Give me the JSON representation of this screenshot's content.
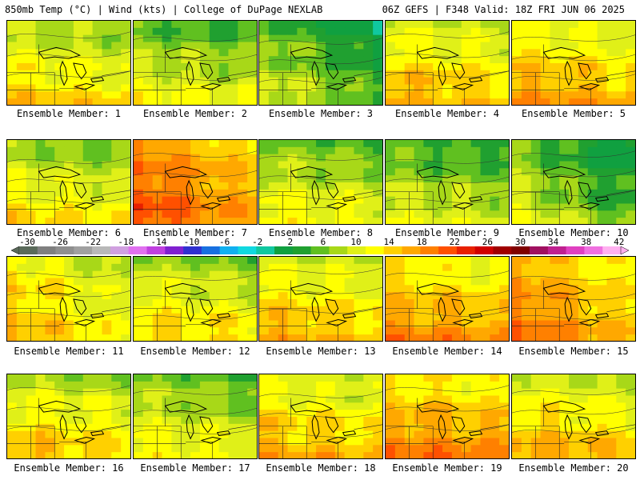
{
  "header": {
    "left_title": "850mb Temp (°C) | Wind (kts) | College of DuPage NEXLAB",
    "right_title": "06Z GEFS | F348 Valid: 18Z FRI JUN 06 2025"
  },
  "panels": [
    {
      "caption": "Ensemble Member: 1",
      "base_temp": 12,
      "gradient": "north-cool"
    },
    {
      "caption": "Ensemble Member: 2",
      "base_temp": 9,
      "gradient": "north-cool"
    },
    {
      "caption": "Ensemble Member: 3",
      "base_temp": 6,
      "gradient": "northeast-cool"
    },
    {
      "caption": "Ensemble Member: 4",
      "base_temp": 14,
      "gradient": "north-cool"
    },
    {
      "caption": "Ensemble Member: 5",
      "base_temp": 15,
      "gradient": "north-cool"
    },
    {
      "caption": "Ensemble Member: 6",
      "base_temp": 11,
      "gradient": "north-cool"
    },
    {
      "caption": "Ensemble Member: 7",
      "base_temp": 19,
      "gradient": "west-warm"
    },
    {
      "caption": "Ensemble Member: 8",
      "base_temp": 10,
      "gradient": "north-cool"
    },
    {
      "caption": "Ensemble Member: 9",
      "base_temp": 8,
      "gradient": "north-cool"
    },
    {
      "caption": "Ensemble Member: 10",
      "base_temp": 6,
      "gradient": "northeast-cool"
    },
    {
      "caption": "Ensemble Member: 11",
      "base_temp": 13,
      "gradient": "west-warm"
    },
    {
      "caption": "Ensemble Member: 12",
      "base_temp": 12,
      "gradient": "north-cool"
    },
    {
      "caption": "Ensemble Member: 13",
      "base_temp": 14,
      "gradient": "north-cool"
    },
    {
      "caption": "Ensemble Member: 14",
      "base_temp": 16,
      "gradient": "north-cool"
    },
    {
      "caption": "Ensemble Member: 15",
      "base_temp": 17,
      "gradient": "west-warm"
    },
    {
      "caption": "Ensemble Member: 16",
      "base_temp": 13,
      "gradient": "north-cool"
    },
    {
      "caption": "Ensemble Member: 17",
      "base_temp": 10,
      "gradient": "north-cool"
    },
    {
      "caption": "Ensemble Member: 18",
      "base_temp": 14,
      "gradient": "north-cool"
    },
    {
      "caption": "Ensemble Member: 19",
      "base_temp": 17,
      "gradient": "north-cool"
    },
    {
      "caption": "Ensemble Member: 20",
      "base_temp": 14,
      "gradient": "north-cool"
    }
  ],
  "colorbar": {
    "labels": [
      "-30",
      "-26",
      "-22",
      "-18",
      "-14",
      "-10",
      "-6",
      "-2",
      "2",
      "6",
      "10",
      "14",
      "18",
      "22",
      "26",
      "30",
      "34",
      "38",
      "42"
    ],
    "colors": [
      "#5a6a5a",
      "#7f7f7f",
      "#8f8f8f",
      "#a0a0a0",
      "#b8b8b8",
      "#d0a0e0",
      "#e070f0",
      "#c040e0",
      "#8020d0",
      "#3030d0",
      "#1870e0",
      "#10b0f0",
      "#10d8e0",
      "#10c8a0",
      "#10a040",
      "#20a030",
      "#60c020",
      "#a8d818",
      "#e0f018",
      "#ffff00",
      "#ffd000",
      "#ffa800",
      "#ff8000",
      "#ff5000",
      "#e82000",
      "#d00000",
      "#a00000",
      "#800000",
      "#a01060",
      "#c02090",
      "#e040c0",
      "#f070e0",
      "#ffb0f0"
    ],
    "min": -34,
    "max": 46
  }
}
